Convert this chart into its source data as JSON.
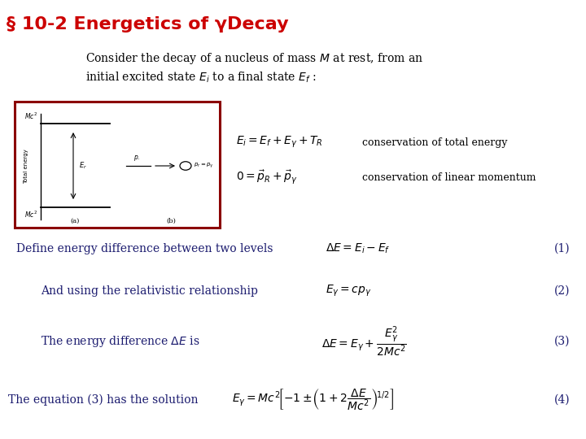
{
  "title": "§ 10-2 Energetics of γDecay",
  "title_color": "#CC0000",
  "title_fontsize": 16,
  "bg_color": "#FFFFFF",
  "body_text_color": "#1a1a6e",
  "intro_text_1": "Consider the decay of a nucleus of mass $M$ at rest, from an",
  "intro_text_2": "initial excited state $E_i$ to a final state $E_f$ :",
  "conservation1_text": "conservation of total energy",
  "conservation2_text": "conservation of linear momentum",
  "eq_conservation1": "$E_i = E_f + E_\\gamma + T_R$",
  "eq_conservation2": "$0 = \\stackrel{\\scriptscriptstyle\\leftrightarrow}{p}_R + \\stackrel{\\scriptscriptstyle\\leftrightarrow}{p}_\\gamma$",
  "line1_text": "Define energy difference between two levels",
  "line1_eq": "$\\Delta E = E_i - E_f$",
  "line1_num": "(1)",
  "line2_text": "And using the relativistic relationship",
  "line2_eq": "$E_\\gamma = cp_\\gamma$",
  "line2_num": "(2)",
  "line3_text": "The energy difference $\\Delta E$ is",
  "line3_eq": "$\\Delta E = E_\\gamma + \\dfrac{E_\\gamma^2}{2Mc^2}$",
  "line3_num": "(3)",
  "line4_text": "The equation (3) has the solution",
  "line4_eq": "$E_\\gamma = Mc^2\\!\\left[-1\\pm\\!\\left(1+2\\dfrac{\\Delta E}{Mc^2}\\right)^{\\!1/2}\\right]$",
  "line4_num": "(4)",
  "diagram_border_color": "#8B0000"
}
